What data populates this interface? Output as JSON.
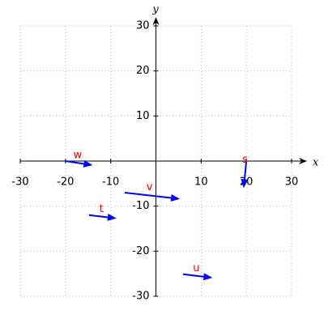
{
  "chart_data": {
    "type": "vector",
    "x_label": "x",
    "y_label": "y",
    "xlim": [
      -30,
      30
    ],
    "ylim": [
      -30,
      30
    ],
    "xticks": [
      -30,
      -20,
      -10,
      10,
      20,
      30
    ],
    "yticks": [
      -30,
      -20,
      -10,
      10,
      20,
      30
    ],
    "grid": true,
    "color": "#0000ff",
    "label_color": "#ff0000",
    "vectors": [
      {
        "name": "w",
        "x": [
          -20,
          -14
        ],
        "y": [
          0,
          -0.9
        ]
      },
      {
        "name": "s",
        "x": [
          20,
          19.4
        ],
        "y": [
          0,
          -6
        ]
      },
      {
        "name": "v",
        "x": [
          -6.9,
          5.3
        ],
        "y": [
          -7,
          -8.4
        ]
      },
      {
        "name": "t",
        "x": [
          -14.8,
          -8.7
        ],
        "y": [
          -12,
          -12.7
        ]
      },
      {
        "name": "u",
        "x": [
          6,
          12.5
        ],
        "y": [
          -25.1,
          -25.9
        ]
      }
    ]
  }
}
